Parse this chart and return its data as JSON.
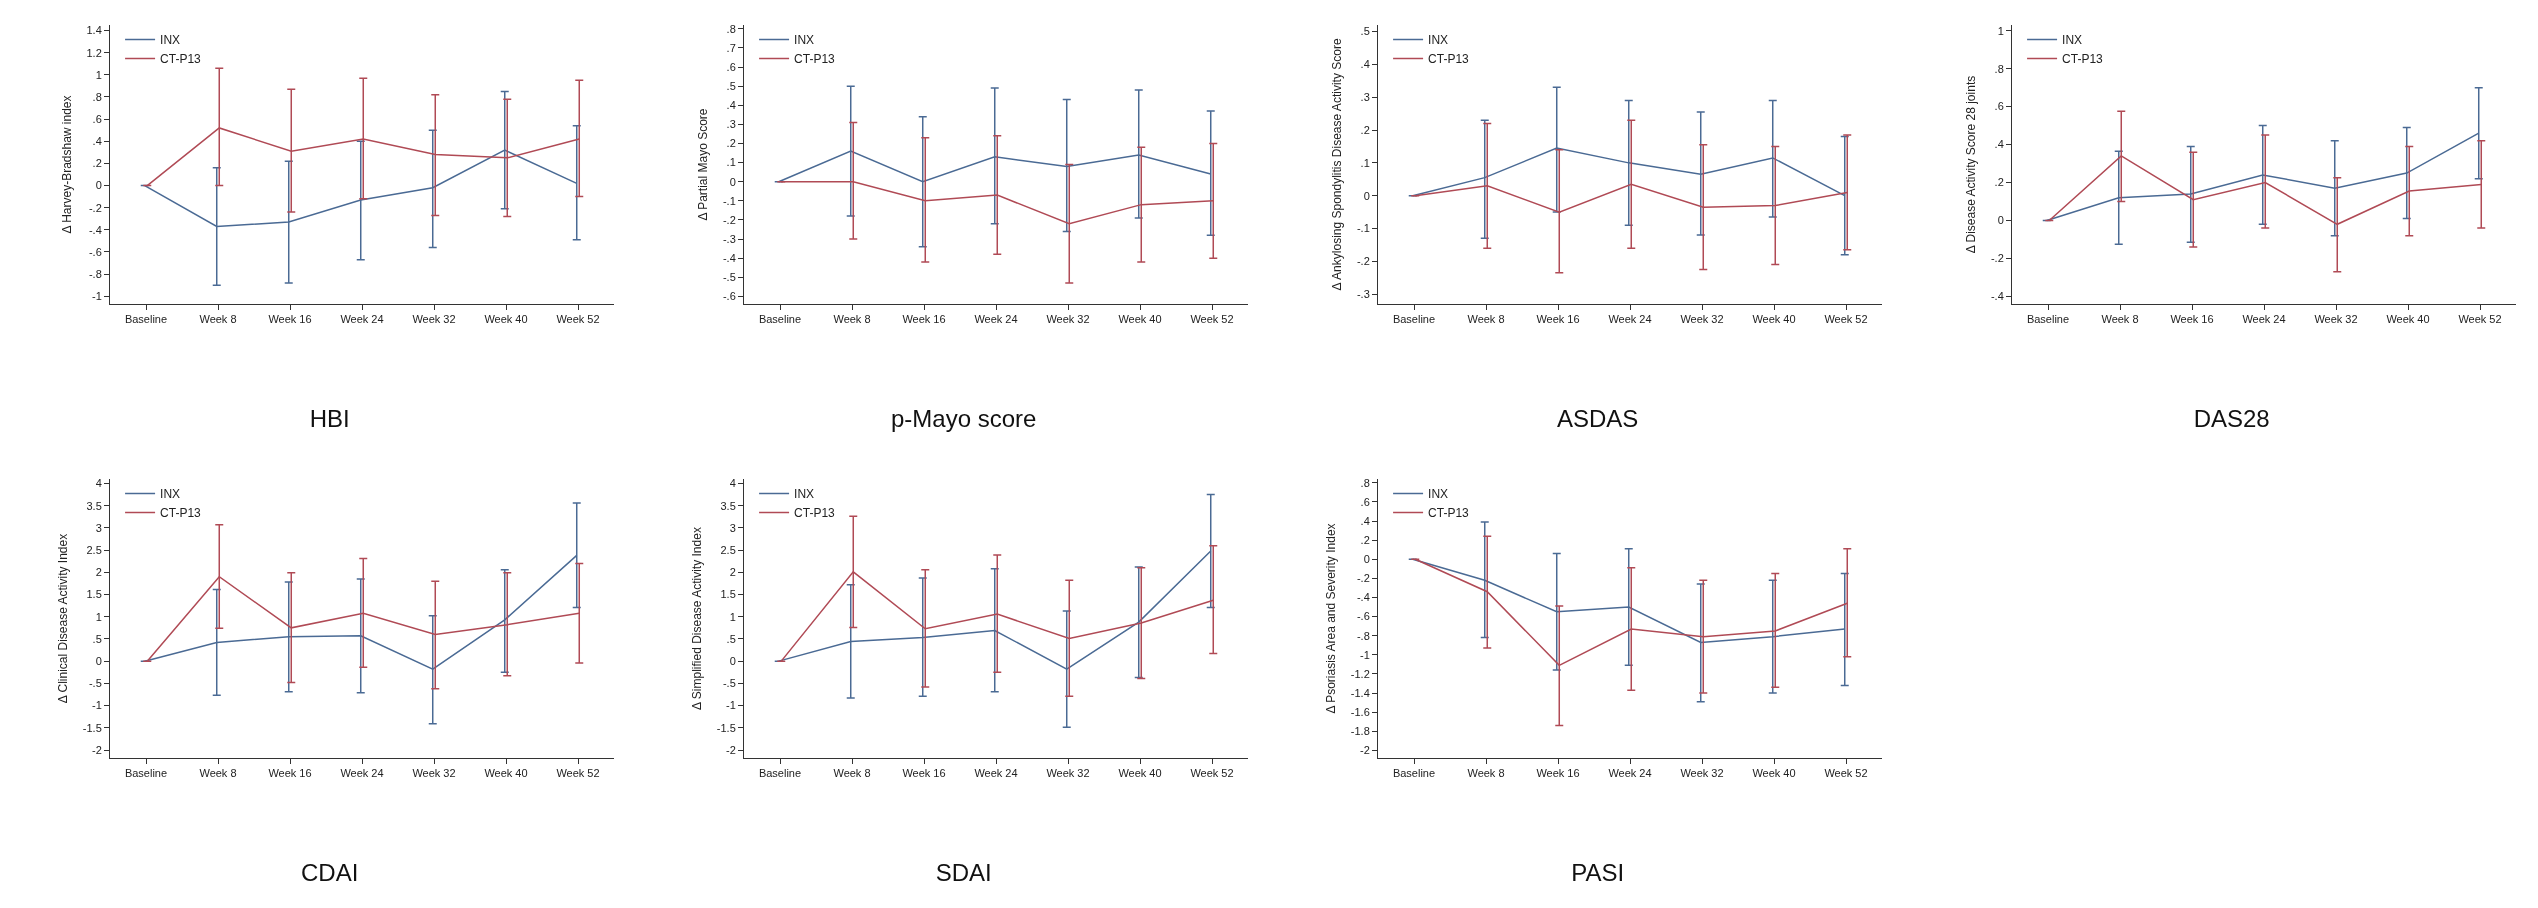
{
  "chart_data": [
    {
      "type": "line",
      "title": "HBI",
      "ylabel": "Δ Harvey-Bradshaw index",
      "legend": "top left",
      "grid": false,
      "marker": "none",
      "line_style": "solid",
      "categories": [
        "Baseline",
        "Week 8",
        "Week 16",
        "Week 24",
        "Week 32",
        "Week 40",
        "Week 52"
      ],
      "ylim": [
        -1.07,
        1.45
      ],
      "yticks": [
        -1,
        {
          "value": -0.8,
          "label": "-.8"
        },
        {
          "value": -0.6,
          "label": "-.6"
        },
        {
          "value": -0.4,
          "label": "-.4"
        },
        {
          "value": -0.2,
          "label": "-.2"
        },
        0,
        {
          "value": 0.2,
          "label": ".2"
        },
        {
          "value": 0.4,
          "label": ".4"
        },
        {
          "value": 0.6,
          "label": ".6"
        },
        {
          "value": 0.8,
          "label": ".8"
        },
        1,
        {
          "value": 1.2,
          "label": "1.2"
        },
        {
          "value": 1.4,
          "label": "1.4"
        }
      ],
      "series": [
        {
          "name": "INX",
          "color": "#4a6a94",
          "values": [
            0,
            -0.37,
            -0.33,
            -0.13,
            -0.02,
            0.32,
            0.02
          ],
          "errors": [
            null,
            [
              -0.9,
              0.16
            ],
            [
              -0.88,
              0.22
            ],
            [
              -0.67,
              0.4
            ],
            [
              -0.56,
              0.5
            ],
            [
              -0.21,
              0.85
            ],
            [
              -0.49,
              0.54
            ]
          ]
        },
        {
          "name": "CT-P13",
          "color": "#b04a55",
          "values": [
            0,
            0.52,
            0.31,
            0.42,
            0.28,
            0.25,
            0.42
          ],
          "errors": [
            null,
            [
              0,
              1.06
            ],
            [
              -0.24,
              0.87
            ],
            [
              -0.12,
              0.97
            ],
            [
              -0.27,
              0.82
            ],
            [
              -0.28,
              0.78
            ],
            [
              -0.1,
              0.95
            ]
          ]
        }
      ]
    },
    {
      "type": "line",
      "title": "p-Mayo score",
      "ylabel": "Δ Partial Mayo Score",
      "legend": "top left",
      "grid": false,
      "marker": "none",
      "line_style": "solid",
      "categories": [
        "Baseline",
        "Week 8",
        "Week 16",
        "Week 24",
        "Week 32",
        "Week 40",
        "Week 52"
      ],
      "ylim": [
        -0.64,
        0.82
      ],
      "yticks": [
        {
          "value": -0.6,
          "label": "-.6"
        },
        {
          "value": -0.5,
          "label": "-.5"
        },
        {
          "value": -0.4,
          "label": "-.4"
        },
        {
          "value": -0.3,
          "label": "-.3"
        },
        {
          "value": -0.2,
          "label": "-.2"
        },
        {
          "value": -0.1,
          "label": "-.1"
        },
        0,
        {
          "value": 0.1,
          "label": ".1"
        },
        {
          "value": 0.2,
          "label": ".2"
        },
        {
          "value": 0.3,
          "label": ".3"
        },
        {
          "value": 0.4,
          "label": ".4"
        },
        {
          "value": 0.5,
          "label": ".5"
        },
        {
          "value": 0.6,
          "label": ".6"
        },
        {
          "value": 0.7,
          "label": ".7"
        },
        {
          "value": 0.8,
          "label": ".8"
        }
      ],
      "series": [
        {
          "name": "INX",
          "color": "#4a6a94",
          "values": [
            0,
            0.16,
            0,
            0.13,
            0.08,
            0.14,
            0.04
          ],
          "errors": [
            null,
            [
              -0.18,
              0.5
            ],
            [
              -0.34,
              0.34
            ],
            [
              -0.22,
              0.49
            ],
            [
              -0.26,
              0.43
            ],
            [
              -0.19,
              0.48
            ],
            [
              -0.28,
              0.37
            ]
          ]
        },
        {
          "name": "CT-P13",
          "color": "#b04a55",
          "values": [
            0,
            0,
            -0.1,
            -0.07,
            -0.22,
            -0.12,
            -0.1
          ],
          "errors": [
            null,
            [
              -0.3,
              0.31
            ],
            [
              -0.42,
              0.23
            ],
            [
              -0.38,
              0.24
            ],
            [
              -0.53,
              0.09
            ],
            [
              -0.42,
              0.18
            ],
            [
              -0.4,
              0.2
            ]
          ]
        }
      ]
    },
    {
      "type": "line",
      "title": "ASDAS",
      "ylabel": "Δ Ankylosing Spondylitis Disease Activity Score",
      "legend": "top left",
      "grid": false,
      "marker": "none",
      "line_style": "solid",
      "categories": [
        "Baseline",
        "Week 8",
        "Week 16",
        "Week 24",
        "Week 32",
        "Week 40",
        "Week 52"
      ],
      "ylim": [
        -0.33,
        0.52
      ],
      "yticks": [
        {
          "value": -0.3,
          "label": "-.3"
        },
        {
          "value": -0.2,
          "label": "-.2"
        },
        {
          "value": -0.1,
          "label": "-.1"
        },
        0,
        {
          "value": 0.1,
          "label": ".1"
        },
        {
          "value": 0.2,
          "label": ".2"
        },
        {
          "value": 0.3,
          "label": ".3"
        },
        {
          "value": 0.4,
          "label": ".4"
        },
        {
          "value": 0.5,
          "label": ".5"
        }
      ],
      "series": [
        {
          "name": "INX",
          "color": "#4a6a94",
          "values": [
            0,
            0.055,
            0.145,
            0.1,
            0.065,
            0.115,
            0
          ],
          "errors": [
            null,
            [
              -0.13,
              0.23
            ],
            [
              -0.05,
              0.33
            ],
            [
              -0.09,
              0.29
            ],
            [
              -0.12,
              0.255
            ],
            [
              -0.065,
              0.29
            ],
            [
              -0.18,
              0.18
            ]
          ]
        },
        {
          "name": "CT-P13",
          "color": "#b04a55",
          "values": [
            0,
            0.03,
            -0.05,
            0.035,
            -0.035,
            -0.03,
            0.01
          ],
          "errors": [
            null,
            [
              -0.16,
              0.22
            ],
            [
              -0.235,
              0.14
            ],
            [
              -0.16,
              0.23
            ],
            [
              -0.225,
              0.155
            ],
            [
              -0.21,
              0.15
            ],
            [
              -0.165,
              0.185
            ]
          ]
        }
      ]
    },
    {
      "type": "line",
      "title": "DAS28",
      "ylabel": "Δ Disease Activity Score 28 joints",
      "legend": "top left",
      "grid": false,
      "marker": "none",
      "line_style": "solid",
      "categories": [
        "Baseline",
        "Week 8",
        "Week 16",
        "Week 24",
        "Week 32",
        "Week 40",
        "Week 52"
      ],
      "ylim": [
        -0.44,
        1.03
      ],
      "yticks": [
        {
          "value": -0.4,
          "label": "-.4"
        },
        {
          "value": -0.2,
          "label": "-.2"
        },
        0,
        {
          "value": 0.2,
          "label": ".2"
        },
        {
          "value": 0.4,
          "label": ".4"
        },
        {
          "value": 0.6,
          "label": ".6"
        },
        {
          "value": 0.8,
          "label": ".8"
        },
        1
      ],
      "series": [
        {
          "name": "INX",
          "color": "#4a6a94",
          "values": [
            0,
            0.12,
            0.14,
            0.24,
            0.17,
            0.25,
            0.46
          ],
          "errors": [
            null,
            [
              -0.125,
              0.365
            ],
            [
              -0.115,
              0.39
            ],
            [
              -0.02,
              0.5
            ],
            [
              -0.08,
              0.42
            ],
            [
              0.01,
              0.49
            ],
            [
              0.22,
              0.7
            ]
          ]
        },
        {
          "name": "CT-P13",
          "color": "#b04a55",
          "values": [
            0,
            0.34,
            0.11,
            0.2,
            -0.02,
            0.155,
            0.19
          ],
          "errors": [
            null,
            [
              0.1,
              0.575
            ],
            [
              -0.14,
              0.36
            ],
            [
              -0.04,
              0.45
            ],
            [
              -0.27,
              0.225
            ],
            [
              -0.08,
              0.39
            ],
            [
              -0.04,
              0.42
            ]
          ]
        }
      ]
    },
    {
      "type": "line",
      "title": "CDAI",
      "ylabel": "Δ Clinical Disease Activity Index",
      "legend": "top left",
      "grid": false,
      "marker": "none",
      "line_style": "solid",
      "categories": [
        "Baseline",
        "Week 8",
        "Week 16",
        "Week 24",
        "Week 32",
        "Week 40",
        "Week 52"
      ],
      "ylim": [
        -2.18,
        4.1
      ],
      "yticks": [
        -2,
        -1.5,
        -1,
        {
          "value": -0.5,
          "label": "-.5"
        },
        0,
        {
          "value": 0.5,
          "label": ".5"
        },
        1,
        1.5,
        2,
        2.5,
        3,
        3.5,
        4
      ],
      "series": [
        {
          "name": "INX",
          "color": "#4a6a94",
          "values": [
            0,
            0.42,
            0.55,
            0.57,
            -0.18,
            0.93,
            2.38
          ],
          "errors": [
            null,
            [
              -0.77,
              1.61
            ],
            [
              -0.69,
              1.78
            ],
            [
              -0.71,
              1.85
            ],
            [
              -1.41,
              1.02
            ],
            [
              -0.25,
              2.06
            ],
            [
              1.21,
              3.56
            ]
          ]
        },
        {
          "name": "CT-P13",
          "color": "#b04a55",
          "values": [
            0,
            1.9,
            0.75,
            1.08,
            0.6,
            0.82,
            1.08
          ],
          "errors": [
            null,
            [
              0.74,
              3.07
            ],
            [
              -0.48,
              1.99
            ],
            [
              -0.14,
              2.31
            ],
            [
              -0.62,
              1.8
            ],
            [
              -0.33,
              1.99
            ],
            [
              -0.04,
              2.2
            ]
          ]
        }
      ]
    },
    {
      "type": "line",
      "title": "SDAI",
      "ylabel": "Δ Simplified Disease Activity Index",
      "legend": "top left",
      "grid": false,
      "marker": "none",
      "line_style": "solid",
      "categories": [
        "Baseline",
        "Week 8",
        "Week 16",
        "Week 24",
        "Week 32",
        "Week 40",
        "Week 52"
      ],
      "ylim": [
        -2.18,
        4.1
      ],
      "yticks": [
        -2,
        -1.5,
        -1,
        {
          "value": -0.5,
          "label": "-.5"
        },
        0,
        {
          "value": 0.5,
          "label": ".5"
        },
        1,
        1.5,
        2,
        2.5,
        3,
        3.5,
        4
      ],
      "series": [
        {
          "name": "INX",
          "color": "#4a6a94",
          "values": [
            0,
            0.44,
            0.53,
            0.69,
            -0.18,
            0.88,
            2.48
          ],
          "errors": [
            null,
            [
              -0.83,
              1.72
            ],
            [
              -0.79,
              1.87
            ],
            [
              -0.69,
              2.08
            ],
            [
              -1.49,
              1.13
            ],
            [
              -0.37,
              2.12
            ],
            [
              1.21,
              3.75
            ]
          ]
        },
        {
          "name": "CT-P13",
          "color": "#b04a55",
          "values": [
            0,
            2.01,
            0.73,
            1.06,
            0.51,
            0.86,
            1.37
          ],
          "errors": [
            null,
            [
              0.76,
              3.26
            ],
            [
              -0.58,
              2.06
            ],
            [
              -0.25,
              2.39
            ],
            [
              -0.79,
              1.82
            ],
            [
              -0.39,
              2.1
            ],
            [
              0.17,
              2.6
            ]
          ]
        }
      ]
    },
    {
      "type": "line",
      "title": "PASI",
      "ylabel": "Δ Psoriasis Area and Severity Index",
      "legend": "top left",
      "grid": false,
      "marker": "none",
      "line_style": "solid",
      "categories": [
        "Baseline",
        "Week 8",
        "Week 16",
        "Week 24",
        "Week 32",
        "Week 40",
        "Week 52"
      ],
      "ylim": [
        -2.08,
        0.84
      ],
      "yticks": [
        -2,
        {
          "value": -1.8,
          "label": "-1.8"
        },
        {
          "value": -1.6,
          "label": "-1.6"
        },
        {
          "value": -1.4,
          "label": "-1.4"
        },
        {
          "value": -1.2,
          "label": "-1.2"
        },
        -1,
        {
          "value": -0.8,
          "label": "-.8"
        },
        {
          "value": -0.6,
          "label": "-.6"
        },
        {
          "value": -0.4,
          "label": "-.4"
        },
        {
          "value": -0.2,
          "label": "-.2"
        },
        0,
        {
          "value": 0.2,
          "label": ".2"
        },
        {
          "value": 0.4,
          "label": ".4"
        },
        {
          "value": 0.6,
          "label": ".6"
        },
        {
          "value": 0.8,
          "label": ".8"
        }
      ],
      "series": [
        {
          "name": "INX",
          "color": "#4a6a94",
          "values": [
            0,
            -0.22,
            -0.55,
            -0.5,
            -0.87,
            -0.81,
            -0.73
          ],
          "errors": [
            null,
            [
              -0.82,
              0.39
            ],
            [
              -1.16,
              0.06
            ],
            [
              -1.11,
              0.11
            ],
            [
              -1.49,
              -0.26
            ],
            [
              -1.4,
              -0.22
            ],
            [
              -1.32,
              -0.15
            ]
          ]
        },
        {
          "name": "CT-P13",
          "color": "#b04a55",
          "values": [
            0,
            -0.34,
            -1.11,
            -0.73,
            -0.81,
            -0.75,
            -0.46
          ],
          "errors": [
            null,
            [
              -0.93,
              0.24
            ],
            [
              -1.74,
              -0.49
            ],
            [
              -1.37,
              -0.09
            ],
            [
              -1.4,
              -0.22
            ],
            [
              -1.34,
              -0.15
            ],
            [
              -1.02,
              0.11
            ]
          ]
        }
      ]
    }
  ]
}
